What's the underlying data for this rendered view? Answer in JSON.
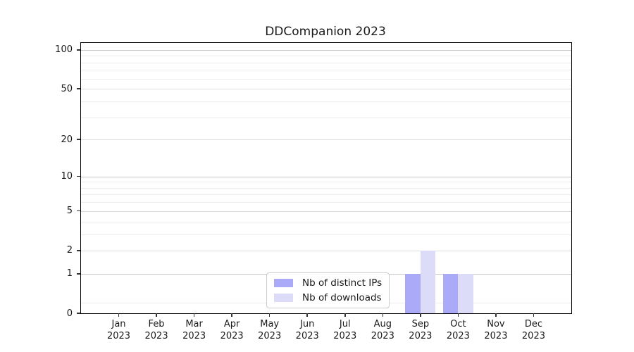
{
  "chart_data": {
    "type": "bar",
    "title": "DDCompanion 2023",
    "categories": [
      "Jan 2023",
      "Feb 2023",
      "Mar 2023",
      "Apr 2023",
      "May 2023",
      "Jun 2023",
      "Jul 2023",
      "Aug 2023",
      "Sep 2023",
      "Oct 2023",
      "Nov 2023",
      "Dec 2023"
    ],
    "series": [
      {
        "name": "Nb of distinct IPs",
        "color": "#aaaaf8",
        "values": [
          0,
          0,
          0,
          0,
          0,
          0,
          0,
          0,
          1,
          1,
          0,
          0
        ]
      },
      {
        "name": "Nb of downloads",
        "color": "#dcdcf9",
        "values": [
          0,
          0,
          0,
          0,
          0,
          0,
          0,
          0,
          2,
          1,
          0,
          0
        ]
      }
    ],
    "xlabel": "",
    "ylabel": "",
    "yscale": "log1p",
    "y_ticks": [
      0,
      1,
      2,
      5,
      10,
      20,
      50,
      100
    ],
    "ylim": [
      0,
      113
    ],
    "grid": true,
    "legend_position": "lower center",
    "bar_group_width": 0.8
  },
  "colors": {
    "background": "#ffffff",
    "spine": "#000000",
    "grid_major_decade": "#c6c6c6",
    "grid_major_other": "#dddddd",
    "grid_minor": "#ececec",
    "text": "#1a1a1a"
  }
}
